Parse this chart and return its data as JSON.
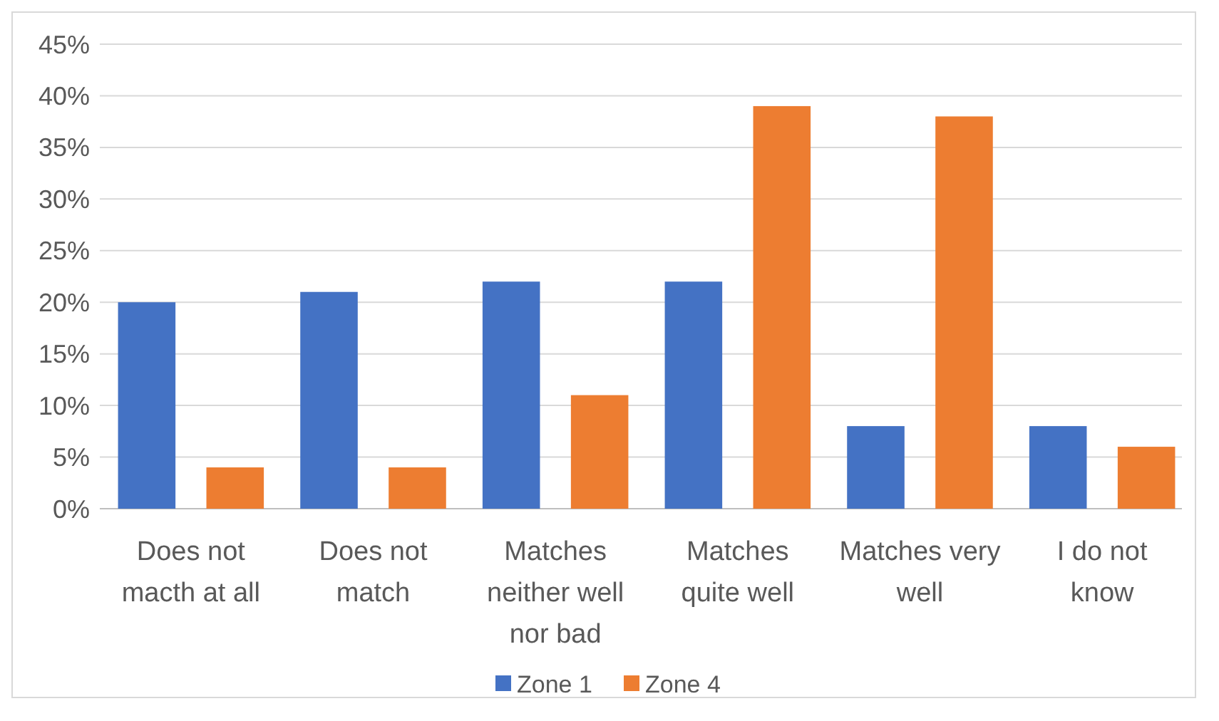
{
  "chart_data": {
    "type": "bar",
    "categories": [
      "Does not macth at all",
      "Does not match",
      "Matches neither well nor bad",
      "Matches quite well",
      "Matches very well",
      "I do not know"
    ],
    "series": [
      {
        "name": "Zone 1",
        "color": "#4472c4",
        "values": [
          20,
          21,
          22,
          22,
          8,
          8
        ]
      },
      {
        "name": "Zone 4",
        "color": "#ed7d31",
        "values": [
          4,
          4,
          11,
          39,
          38,
          6
        ]
      }
    ],
    "ylim": [
      0,
      45
    ],
    "yticks": [
      {
        "value": 0,
        "label": "0%"
      },
      {
        "value": 5,
        "label": "5%"
      },
      {
        "value": 10,
        "label": "10%"
      },
      {
        "value": 15,
        "label": "15%"
      },
      {
        "value": 20,
        "label": "20%"
      },
      {
        "value": 25,
        "label": "25%"
      },
      {
        "value": 30,
        "label": "30%"
      },
      {
        "value": 35,
        "label": "35%"
      },
      {
        "value": 40,
        "label": "40%"
      },
      {
        "value": 45,
        "label": "45%"
      }
    ],
    "grid": "y",
    "legend": "bottom"
  }
}
